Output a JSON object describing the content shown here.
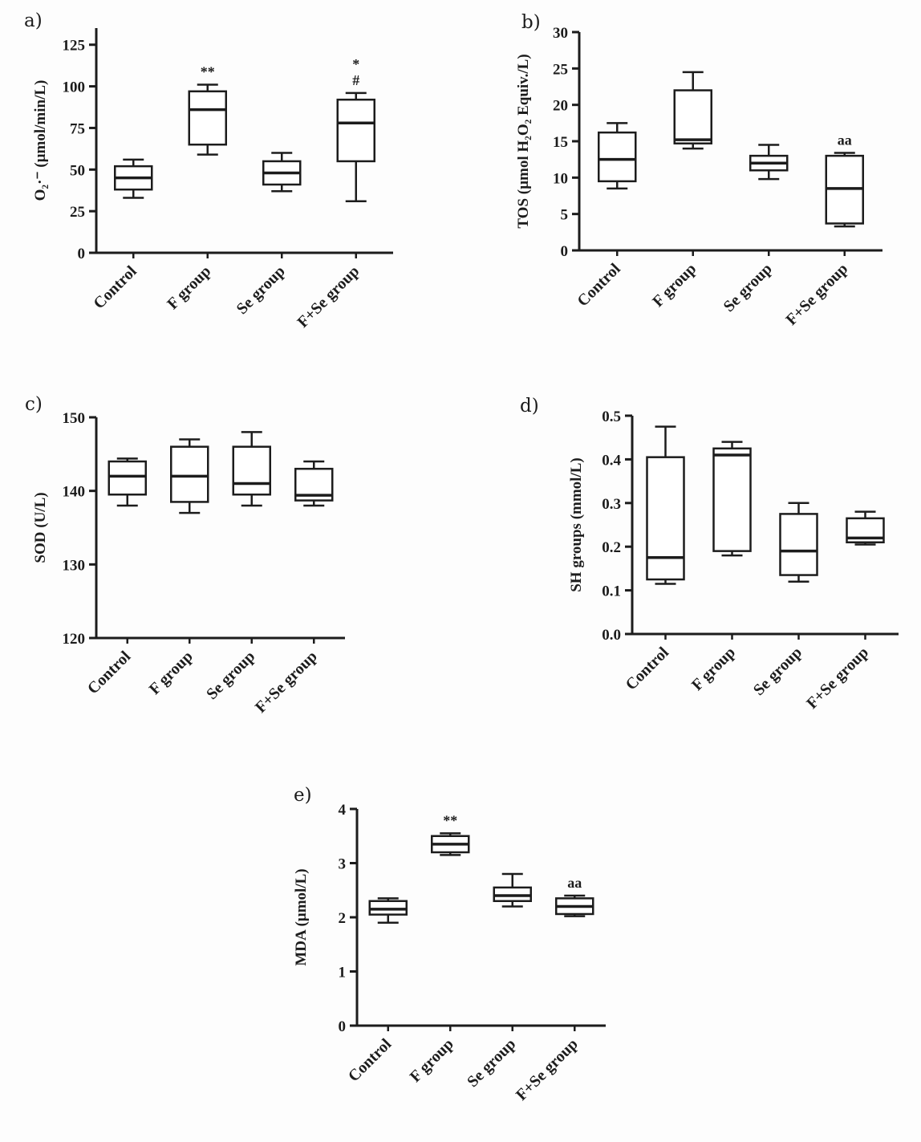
{
  "figure": {
    "background": "#fdfdfd",
    "ink_color": "#1c1c1c",
    "box_fill": "#ffffff"
  },
  "chart_data": [
    {
      "id": "a",
      "panel_label": "a)",
      "type": "box",
      "title": "",
      "xlabel": "",
      "ylabel": "O₂·⁻ (µmol/min/L)",
      "grid": false,
      "categories": [
        "Control",
        "F group",
        "Se group",
        "F+Se group"
      ],
      "ylim": [
        0,
        135
      ],
      "ytick_values": [
        0,
        25,
        50,
        75,
        100,
        125
      ],
      "ytick_labels": [
        "0",
        "25",
        "50",
        "75",
        "100",
        "125"
      ],
      "boxes": [
        {
          "category": "Control",
          "min": 33,
          "q1": 38,
          "median": 45,
          "q3": 52,
          "max": 56
        },
        {
          "category": "F group",
          "min": 59,
          "q1": 65,
          "median": 86,
          "q3": 97,
          "max": 101
        },
        {
          "category": "Se group",
          "min": 37,
          "q1": 41,
          "median": 48,
          "q3": 55,
          "max": 60
        },
        {
          "category": "F+Se group",
          "min": 31,
          "q1": 55,
          "median": 78,
          "q3": 92,
          "max": 96
        }
      ],
      "annotations": [
        {
          "category_index": 1,
          "lines": [
            "**"
          ]
        },
        {
          "category_index": 3,
          "lines": [
            "*",
            "#"
          ]
        }
      ]
    },
    {
      "id": "b",
      "panel_label": "b)",
      "type": "box",
      "title": "",
      "xlabel": "",
      "ylabel": "TOS (µmol H₂O₂ Equiv./L)",
      "grid": false,
      "categories": [
        "Control",
        "F group",
        "Se group",
        "F+Se group"
      ],
      "ylim": [
        0,
        30
      ],
      "ytick_values": [
        0,
        5,
        10,
        15,
        20,
        25,
        30
      ],
      "ytick_labels": [
        "0",
        "5",
        "10",
        "15",
        "20",
        "25",
        "30"
      ],
      "boxes": [
        {
          "category": "Control",
          "min": 8.5,
          "q1": 9.5,
          "median": 12.5,
          "q3": 16.2,
          "max": 17.5
        },
        {
          "category": "F group",
          "min": 14,
          "q1": 14.7,
          "median": 15.2,
          "q3": 22,
          "max": 24.5
        },
        {
          "category": "Se group",
          "min": 9.8,
          "q1": 11,
          "median": 12,
          "q3": 13,
          "max": 14.5
        },
        {
          "category": "F+Se group",
          "min": 3.3,
          "q1": 3.7,
          "median": 8.5,
          "q3": 13,
          "max": 13.4
        }
      ],
      "annotations": [
        {
          "category_index": 3,
          "lines": [
            "aa"
          ]
        }
      ]
    },
    {
      "id": "c",
      "panel_label": "c)",
      "type": "box",
      "title": "",
      "xlabel": "",
      "ylabel": "SOD (U/L)",
      "grid": false,
      "categories": [
        "Control",
        "F group",
        "Se group",
        "F+Se group"
      ],
      "ylim": [
        120,
        150
      ],
      "ytick_values": [
        120,
        130,
        140,
        150
      ],
      "ytick_labels": [
        "120",
        "130",
        "140",
        "150"
      ],
      "boxes": [
        {
          "category": "Control",
          "min": 138,
          "q1": 139.5,
          "median": 142,
          "q3": 144,
          "max": 144.4
        },
        {
          "category": "F group",
          "min": 137,
          "q1": 138.5,
          "median": 142,
          "q3": 146,
          "max": 147
        },
        {
          "category": "Se group",
          "min": 138,
          "q1": 139.5,
          "median": 141,
          "q3": 146,
          "max": 148
        },
        {
          "category": "F+Se group",
          "min": 138,
          "q1": 138.7,
          "median": 139.4,
          "q3": 143,
          "max": 144
        }
      ],
      "annotations": []
    },
    {
      "id": "d",
      "panel_label": "d)",
      "type": "box",
      "title": "",
      "xlabel": "",
      "ylabel": "SH groups (mmol/L)",
      "grid": false,
      "categories": [
        "Control",
        "F group",
        "Se group",
        "F+Se group"
      ],
      "ylim": [
        0,
        0.5
      ],
      "ytick_values": [
        0,
        0.1,
        0.2,
        0.3,
        0.4,
        0.5
      ],
      "ytick_labels": [
        "0.0",
        "0.1",
        "0.2",
        "0.3",
        "0.4",
        "0.5"
      ],
      "boxes": [
        {
          "category": "Control",
          "min": 0.115,
          "q1": 0.125,
          "median": 0.175,
          "q3": 0.405,
          "max": 0.475
        },
        {
          "category": "F group",
          "min": 0.18,
          "q1": 0.19,
          "median": 0.41,
          "q3": 0.425,
          "max": 0.44
        },
        {
          "category": "Se group",
          "min": 0.12,
          "q1": 0.135,
          "median": 0.19,
          "q3": 0.275,
          "max": 0.3
        },
        {
          "category": "F+Se group",
          "min": 0.205,
          "q1": 0.21,
          "median": 0.22,
          "q3": 0.265,
          "max": 0.28
        }
      ],
      "annotations": []
    },
    {
      "id": "e",
      "panel_label": "e)",
      "type": "box",
      "title": "",
      "xlabel": "",
      "ylabel": "MDA (µmol/L)",
      "grid": false,
      "categories": [
        "Control",
        "F group",
        "Se group",
        "F+Se group"
      ],
      "ylim": [
        0,
        4
      ],
      "ytick_values": [
        0,
        1,
        2,
        3,
        4
      ],
      "ytick_labels": [
        "0",
        "1",
        "2",
        "3",
        "4"
      ],
      "boxes": [
        {
          "category": "Control",
          "min": 1.9,
          "q1": 2.05,
          "median": 2.15,
          "q3": 2.3,
          "max": 2.35
        },
        {
          "category": "F group",
          "min": 3.15,
          "q1": 3.2,
          "median": 3.35,
          "q3": 3.5,
          "max": 3.55
        },
        {
          "category": "Se group",
          "min": 2.2,
          "q1": 2.3,
          "median": 2.4,
          "q3": 2.55,
          "max": 2.8
        },
        {
          "category": "F+Se group",
          "min": 2.02,
          "q1": 2.06,
          "median": 2.2,
          "q3": 2.35,
          "max": 2.4
        }
      ],
      "annotations": [
        {
          "category_index": 1,
          "lines": [
            "**"
          ]
        },
        {
          "category_index": 3,
          "lines": [
            "aa"
          ]
        }
      ]
    }
  ]
}
